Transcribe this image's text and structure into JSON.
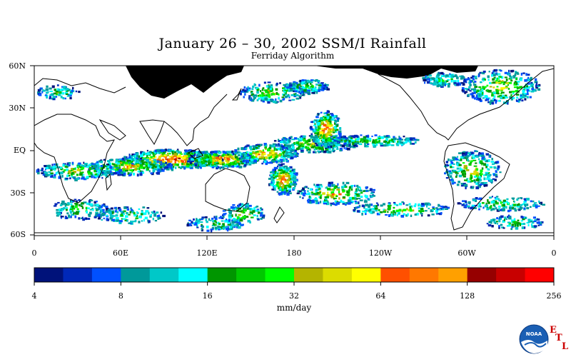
{
  "title": "January 26 – 30, 2002 SSM/I Rainfall",
  "subtitle": "Ferriday Algorithm",
  "lat_labels": [
    "60N",
    "30N",
    "EQ",
    "30S",
    "60S"
  ],
  "lon_labels": [
    "0",
    "60E",
    "120E",
    "180",
    "120W",
    "60W",
    "0"
  ],
  "colorbar": {
    "colors": [
      "#00127a",
      "#0028b8",
      "#0050ff",
      "#00999a",
      "#00c8c8",
      "#00ffff",
      "#009600",
      "#00c800",
      "#00ff00",
      "#b4b400",
      "#dcdc00",
      "#ffff00",
      "#ff5000",
      "#ff7800",
      "#ffa000",
      "#960000",
      "#c80000",
      "#ff0000"
    ],
    "ticks": [
      "4",
      "8",
      "16",
      "32",
      "64",
      "128",
      "256"
    ],
    "units": "mm/day"
  },
  "logo": {
    "name": "noaa-logo",
    "text": "NOAA",
    "letters": [
      "E",
      "T",
      "L"
    ]
  }
}
